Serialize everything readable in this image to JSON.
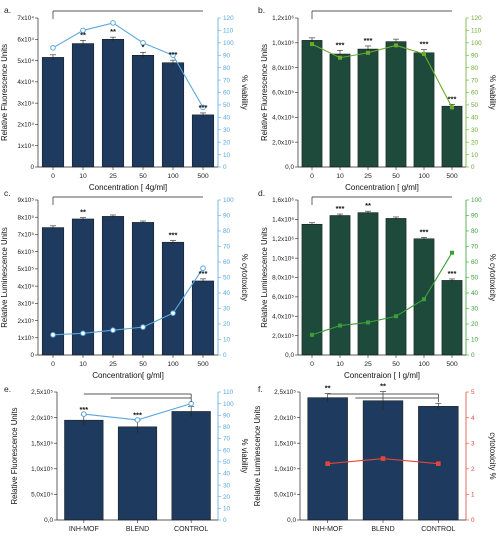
{
  "chart_data": [
    {
      "type": "bar",
      "panel_label": "a.",
      "categories": [
        "0",
        "10",
        "25",
        "50",
        "100",
        "500"
      ],
      "series": [
        {
          "values": [
            51500,
            58000,
            60000,
            52500,
            49000,
            24500
          ],
          "color": "#1e3a5f"
        },
        {
          "values": [
            96,
            110,
            116,
            100,
            90,
            48
          ],
          "color": "#5aa6dc"
        }
      ],
      "error_bars": [
        1200,
        1500,
        1000,
        1400,
        1200,
        900
      ],
      "significance": [
        "",
        "**",
        "**",
        "*",
        "***",
        "***"
      ],
      "xlabel": "Concentration [ 4g/ml]",
      "ylabel": "Relative Fluorescence Units",
      "ylabel_right": "% viability",
      "ylim": [
        0,
        70000
      ],
      "yticks": [
        "0",
        "1x10⁴",
        "2x10⁴",
        "3x10⁴",
        "4x10⁴",
        "5x10⁴",
        "6x10⁴",
        "7x10⁴"
      ],
      "ylim_right": [
        0,
        120
      ],
      "yticks_right": [
        "0",
        "10",
        "20",
        "30",
        "40",
        "50",
        "60",
        "70",
        "80",
        "90",
        "100",
        "110",
        "120"
      ]
    },
    {
      "type": "bar",
      "panel_label": "b.",
      "categories": [
        "0",
        "10",
        "25",
        "50",
        "100",
        "500"
      ],
      "series": [
        {
          "values": [
            1020000,
            910000,
            950000,
            1010000,
            920000,
            490000
          ],
          "color": "#1d4a3b"
        },
        {
          "values": [
            99,
            88,
            92,
            98,
            91,
            48
          ],
          "color": "#6aab2e"
        }
      ],
      "error_bars": [
        20000,
        30000,
        25000,
        20000,
        25000,
        15000
      ],
      "significance": [
        "",
        "***",
        "***",
        "",
        "***",
        "***"
      ],
      "xlabel": "Concentration [ g/ml]",
      "ylabel": "Relative Fluorescence Units",
      "ylabel_right": "% viability",
      "ylim": [
        0,
        1200000
      ],
      "yticks": [
        "0,0",
        "2,0x10⁵",
        "4,0x10⁵",
        "6,0x10⁵",
        "8,0x10⁵",
        "1,0x10⁶",
        "1,2x10⁶"
      ],
      "ylim_right": [
        0,
        120
      ],
      "yticks_right": [
        "0",
        "10",
        "20",
        "30",
        "40",
        "50",
        "60",
        "70",
        "80",
        "90",
        "100",
        "110",
        "120"
      ]
    },
    {
      "type": "bar",
      "panel_label": "c.",
      "categories": [
        "0",
        "10",
        "25",
        "50",
        "100",
        "500"
      ],
      "series": [
        {
          "values": [
            740000,
            790000,
            805000,
            770000,
            655000,
            430000
          ],
          "color": "#1e3a5f"
        },
        {
          "values": [
            13,
            14,
            16,
            18,
            27,
            56
          ],
          "color": "#5aa6dc"
        }
      ],
      "error_bars": [
        10000,
        8000,
        8000,
        8000,
        10000,
        12000
      ],
      "significance": [
        "",
        "**",
        "",
        "",
        "***",
        "***"
      ],
      "xlabel": "Concentration[ g/ml]",
      "ylabel": "Relative Luminescence Units",
      "ylabel_right": "% cytotoxicity",
      "ylim": [
        0,
        900000
      ],
      "yticks": [
        "0",
        "1x10⁵",
        "2x10⁵",
        "3x10⁵",
        "4x10⁵",
        "5x10⁵",
        "6x10⁵",
        "7x10⁵",
        "8x10⁵",
        "9x10⁵"
      ],
      "ylim_right": [
        0,
        100
      ],
      "yticks_right": [
        "0",
        "10",
        "20",
        "30",
        "40",
        "50",
        "60",
        "70",
        "80",
        "90",
        "100"
      ]
    },
    {
      "type": "bar",
      "panel_label": "d.",
      "categories": [
        "0",
        "10",
        "25",
        "50",
        "100",
        "500"
      ],
      "series": [
        {
          "values": [
            1350000,
            1440000,
            1470000,
            1410000,
            1200000,
            770000
          ],
          "color": "#1d4a3b"
        },
        {
          "values": [
            13,
            19,
            21,
            25,
            36,
            66
          ],
          "color": "#3a9e3a"
        }
      ],
      "error_bars": [
        15000,
        15000,
        15000,
        15000,
        15000,
        15000
      ],
      "significance": [
        "",
        "***",
        "**",
        "",
        "***",
        "***"
      ],
      "xlabel": "Concentraion [ I g/ml]",
      "ylabel": "Relative Luminescence Units",
      "ylabel_right": "% cytotoxicity",
      "ylim": [
        0,
        1600000
      ],
      "yticks": [
        "0,0",
        "2,0x10⁵",
        "4,0x10⁵",
        "6,0x10⁵",
        "8,0x10⁵",
        "1,0x10⁶",
        "1,2x10⁶",
        "1,4x10⁶",
        "1,6x10⁶"
      ],
      "ylim_right": [
        0,
        100
      ],
      "yticks_right": [
        "0",
        "10",
        "20",
        "30",
        "40",
        "50",
        "60",
        "70",
        "80",
        "90",
        "100"
      ]
    },
    {
      "type": "bar",
      "panel_label": "e.",
      "categories": [
        "INH-MOF",
        "BLEND",
        "CONTROL"
      ],
      "series": [
        {
          "values": [
            195000,
            182000,
            212000
          ],
          "color": "#1e3a5f"
        },
        {
          "values": [
            91,
            86,
            100
          ],
          "color": "#5aa6dc"
        }
      ],
      "error_bars": [
        10000,
        12000,
        10000
      ],
      "significance": [
        "***",
        "***",
        ""
      ],
      "xlabel": "",
      "ylabel": "Relative Fluorescence Units",
      "ylabel_right": "% viability",
      "ylim": [
        0,
        250000
      ],
      "yticks": [
        "0,0",
        "5,0x10⁴",
        "1,0x10⁵",
        "1,5x10⁵",
        "2,0x10⁵",
        "2,5x10⁵"
      ],
      "ylim_right": [
        0,
        110
      ],
      "yticks_right": [
        "0",
        "10",
        "20",
        "30",
        "40",
        "50",
        "60",
        "70",
        "80",
        "90",
        "100",
        "110"
      ]
    },
    {
      "type": "bar",
      "panel_label": "f.",
      "categories": [
        "INH-MOF",
        "BLEND",
        "CONTROL"
      ],
      "series": [
        {
          "values": [
            239000,
            233000,
            222000
          ],
          "color": "#1e3a5f"
        },
        {
          "values": [
            2.2,
            2.4,
            2.2
          ],
          "color": "#e0473a"
        }
      ],
      "error_bars": [
        8000,
        18000,
        6000
      ],
      "significance": [
        "**",
        "**",
        ""
      ],
      "xlabel": "",
      "ylabel": "Relative Luminescence Units",
      "ylabel_right": "cytotoxicity %",
      "ylim": [
        0,
        250000
      ],
      "yticks": [
        "0,0",
        "5,0x10⁴",
        "1,0x10⁵",
        "1,5x10⁵",
        "2,0x10⁵",
        "2,5x10⁵"
      ],
      "ylim_right": [
        0,
        5
      ],
      "yticks_right": [
        "0",
        "1",
        "2",
        "3",
        "4",
        "5"
      ]
    }
  ]
}
